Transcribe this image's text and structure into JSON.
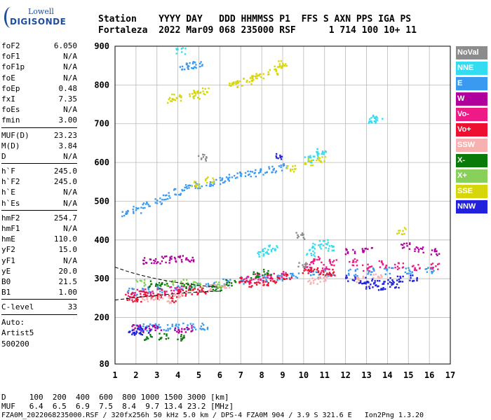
{
  "logo": {
    "line1": "Lowell",
    "line2": "DIGISONDE"
  },
  "header": {
    "line1": "Station    YYYY DAY   DDD HHMMSS P1  FFS S AXN PPS IGA PS",
    "line2": "Fortaleza  2022 Mar09 068 235000 RSF      1 714 100 10+ 11"
  },
  "params": [
    {
      "name": "foF2",
      "value": "6.050"
    },
    {
      "name": "foF1",
      "value": "N/A"
    },
    {
      "name": "foF1p",
      "value": "N/A"
    },
    {
      "name": "foE",
      "value": "N/A"
    },
    {
      "name": "foEp",
      "value": "0.48"
    },
    {
      "name": "fxI",
      "value": "7.35"
    },
    {
      "name": "foEs",
      "value": "N/A"
    },
    {
      "name": "fmin",
      "value": "3.00"
    },
    {
      "name": "MUF(D)",
      "value": "23.23"
    },
    {
      "name": "M(D)",
      "value": "3.84"
    },
    {
      "name": "D",
      "value": "N/A"
    },
    {
      "name": "h`F",
      "value": "245.0"
    },
    {
      "name": "h`F2",
      "value": "245.0"
    },
    {
      "name": "h`E",
      "value": "N/A"
    },
    {
      "name": "h`Es",
      "value": "N/A"
    },
    {
      "name": "hmF2",
      "value": "254.7"
    },
    {
      "name": "hmF1",
      "value": "N/A"
    },
    {
      "name": "hmE",
      "value": "110.0"
    },
    {
      "name": "yF2",
      "value": "15.0"
    },
    {
      "name": "yF1",
      "value": "N/A"
    },
    {
      "name": "yE",
      "value": "20.0"
    },
    {
      "name": "B0",
      "value": "21.5"
    },
    {
      "name": "B1",
      "value": "1.00"
    },
    {
      "name": "C-level",
      "value": "33"
    }
  ],
  "auto": {
    "line1": "Auto:",
    "line2": "Artist5",
    "line3": "500200"
  },
  "legend": [
    {
      "label": "NoVal",
      "color": "#8c8c8c"
    },
    {
      "label": "NNE",
      "color": "#34dcf2"
    },
    {
      "label": "E",
      "color": "#3a9af0"
    },
    {
      "label": "W",
      "color": "#b0009c"
    },
    {
      "label": "Vo-",
      "color": "#ee1a86"
    },
    {
      "label": "Vo+",
      "color": "#ee1030"
    },
    {
      "label": "SSW",
      "color": "#f7b1b1"
    },
    {
      "label": "X-",
      "color": "#0a7a0a"
    },
    {
      "label": "X+",
      "color": "#88d05a"
    },
    {
      "label": "SSE",
      "color": "#d6d60a"
    },
    {
      "label": "NNW",
      "color": "#2222dc"
    }
  ],
  "bottom": {
    "line1": "D     100  200  400  600  800 1000 1500 3000 [km]",
    "line2": "MUF   6.4  6.5  6.9  7.5  8.4  9.7 13.4 23.2 [MHz]",
    "line3": "FZA0M_2022068235000.RSF / 320fx256h 50 kHz 5.0 km / DPS-4 FZA0M 904 / 3.9 S 321.6 E   Ion2Png 1.3.20"
  },
  "chart_data": {
    "type": "scatter",
    "title": "",
    "xlabel": "",
    "ylabel": "",
    "xlim": [
      1,
      17
    ],
    "ylim": [
      80,
      900
    ],
    "xticks": [
      1,
      2,
      3,
      4,
      5,
      6,
      7,
      8,
      9,
      10,
      11,
      12,
      13,
      14,
      15,
      16,
      17
    ],
    "yticks": [
      80,
      200,
      300,
      400,
      500,
      600,
      700,
      800,
      900
    ],
    "grid": true,
    "legend_position": "right",
    "series": [
      {
        "name": "E",
        "color": "#3a9af0",
        "points": [
          [
            1.5,
            470
          ],
          [
            2.0,
            480
          ],
          [
            2.5,
            492
          ],
          [
            3.0,
            503
          ],
          [
            3.5,
            515
          ],
          [
            4.0,
            525
          ],
          [
            4.5,
            535
          ],
          [
            5.0,
            543
          ],
          [
            5.5,
            550
          ],
          [
            6.0,
            555
          ],
          [
            6.5,
            562
          ],
          [
            7.0,
            568
          ],
          [
            7.5,
            574
          ],
          [
            8.0,
            579
          ],
          [
            8.5,
            584
          ],
          [
            9.0,
            590
          ],
          [
            1.8,
            268
          ],
          [
            2.5,
            272
          ],
          [
            3.2,
            275
          ],
          [
            4.0,
            278
          ],
          [
            4.8,
            282
          ],
          [
            5.5,
            287
          ],
          [
            6.3,
            292
          ],
          [
            7.2,
            298
          ],
          [
            8.0,
            302
          ],
          [
            8.8,
            306
          ],
          [
            9.5,
            309
          ],
          [
            10.5,
            313
          ],
          [
            11.2,
            316
          ],
          [
            12.3,
            318
          ],
          [
            13.2,
            320
          ],
          [
            14.0,
            322
          ],
          [
            15.0,
            323
          ],
          [
            16.0,
            324
          ],
          [
            2.0,
            176
          ],
          [
            2.5,
            176
          ],
          [
            3.0,
            177
          ],
          [
            3.5,
            177
          ],
          [
            4.0,
            178
          ],
          [
            4.6,
            178
          ],
          [
            5.2,
            178
          ],
          [
            4.3,
            850
          ],
          [
            4.6,
            852
          ],
          [
            4.9,
            853
          ]
        ]
      },
      {
        "name": "NNE",
        "color": "#34dcf2",
        "points": [
          [
            10.3,
            368
          ],
          [
            10.6,
            385
          ],
          [
            10.9,
            395
          ],
          [
            11.2,
            380
          ],
          [
            8.0,
            365
          ],
          [
            8.2,
            372
          ],
          [
            8.5,
            380
          ],
          [
            10.2,
            610
          ],
          [
            10.5,
            620
          ],
          [
            10.8,
            632
          ],
          [
            13.3,
            710
          ],
          [
            13.5,
            715
          ],
          [
            4.1,
            890
          ]
        ]
      },
      {
        "name": "SSE",
        "color": "#d6d60a",
        "points": [
          [
            8.5,
            835
          ],
          [
            8.8,
            845
          ],
          [
            9.0,
            855
          ],
          [
            7.3,
            810
          ],
          [
            7.6,
            820
          ],
          [
            7.9,
            828
          ],
          [
            6.6,
            800
          ],
          [
            6.8,
            808
          ],
          [
            4.7,
            780
          ],
          [
            4.9,
            775
          ],
          [
            5.2,
            785
          ],
          [
            3.7,
            760
          ],
          [
            3.9,
            770
          ],
          [
            4.8,
            545
          ],
          [
            5.5,
            555
          ],
          [
            10.2,
            603
          ],
          [
            10.8,
            608
          ],
          [
            9.4,
            585
          ],
          [
            14.6,
            425
          ]
        ]
      },
      {
        "name": "W",
        "color": "#b0009c",
        "points": [
          [
            2.5,
            348
          ],
          [
            3.0,
            350
          ],
          [
            3.5,
            352
          ],
          [
            4.0,
            353
          ],
          [
            4.5,
            354
          ],
          [
            2.0,
            174
          ],
          [
            2.5,
            172
          ],
          [
            3.0,
            173
          ],
          [
            4.0,
            171
          ],
          [
            4.5,
            172
          ],
          [
            12.2,
            370
          ],
          [
            13.0,
            378
          ],
          [
            14.8,
            385
          ],
          [
            15.5,
            375
          ],
          [
            16.2,
            370
          ]
        ]
      },
      {
        "name": "Vo-",
        "color": "#ee1a86",
        "points": [
          [
            1.8,
            260
          ],
          [
            2.2,
            270
          ],
          [
            2.7,
            262
          ],
          [
            3.2,
            268
          ],
          [
            3.8,
            272
          ],
          [
            4.3,
            275
          ],
          [
            7.3,
            300
          ],
          [
            7.8,
            305
          ],
          [
            8.4,
            310
          ],
          [
            9.0,
            312
          ],
          [
            10.2,
            340
          ],
          [
            10.6,
            350
          ],
          [
            11.0,
            330
          ],
          [
            11.4,
            345
          ],
          [
            12.3,
            345
          ],
          [
            13.0,
            330
          ],
          [
            13.8,
            340
          ],
          [
            14.5,
            335
          ],
          [
            15.3,
            330
          ],
          [
            16.2,
            335
          ]
        ]
      },
      {
        "name": "Vo+",
        "color": "#ee1030",
        "points": [
          [
            1.7,
            255
          ],
          [
            2.0,
            250
          ],
          [
            2.4,
            262
          ],
          [
            2.9,
            258
          ],
          [
            3.3,
            262
          ],
          [
            3.7,
            250
          ],
          [
            4.2,
            265
          ],
          [
            4.7,
            270
          ],
          [
            5.2,
            272
          ],
          [
            7.1,
            296
          ],
          [
            7.6,
            288
          ],
          [
            8.1,
            292
          ],
          [
            8.6,
            300
          ],
          [
            9.2,
            305
          ],
          [
            10.1,
            320
          ],
          [
            10.5,
            325
          ],
          [
            10.9,
            312
          ],
          [
            11.3,
            318
          ]
        ]
      },
      {
        "name": "SSW",
        "color": "#f7b1b1",
        "points": [
          [
            2.5,
            252
          ],
          [
            3.0,
            255
          ],
          [
            3.4,
            248
          ],
          [
            4.0,
            262
          ],
          [
            5.6,
            278
          ],
          [
            6.2,
            282
          ],
          [
            10.4,
            296
          ],
          [
            10.9,
            300
          ],
          [
            12.6,
            302
          ],
          [
            13.5,
            306
          ]
        ]
      },
      {
        "name": "X-",
        "color": "#0a7a0a",
        "points": [
          [
            2.8,
            288
          ],
          [
            3.3,
            285
          ],
          [
            4.4,
            280
          ],
          [
            5.8,
            276
          ],
          [
            6.5,
            290
          ],
          [
            7.6,
            312
          ],
          [
            8.2,
            318
          ],
          [
            2.6,
            150
          ],
          [
            3.3,
            152
          ],
          [
            4.1,
            150
          ]
        ]
      },
      {
        "name": "X+",
        "color": "#88d05a",
        "points": [
          [
            2.2,
            292
          ],
          [
            3.6,
            290
          ],
          [
            4.9,
            288
          ],
          [
            6.0,
            286
          ],
          [
            4.3,
            294
          ]
        ]
      },
      {
        "name": "NNW",
        "color": "#2222dc",
        "points": [
          [
            12.2,
            302
          ],
          [
            12.8,
            296
          ],
          [
            13.4,
            292
          ],
          [
            14.0,
            296
          ],
          [
            14.6,
            300
          ],
          [
            15.2,
            305
          ],
          [
            13.1,
            285
          ],
          [
            13.7,
            282
          ],
          [
            14.3,
            285
          ],
          [
            8.8,
            618
          ],
          [
            1.8,
            160
          ],
          [
            2.1,
            165
          ],
          [
            2.4,
            170
          ]
        ]
      },
      {
        "name": "NoVal",
        "color": "#8c8c8c",
        "points": [
          [
            5.1,
            615
          ],
          [
            9.8,
            412
          ],
          [
            9.9,
            340
          ]
        ]
      }
    ]
  }
}
